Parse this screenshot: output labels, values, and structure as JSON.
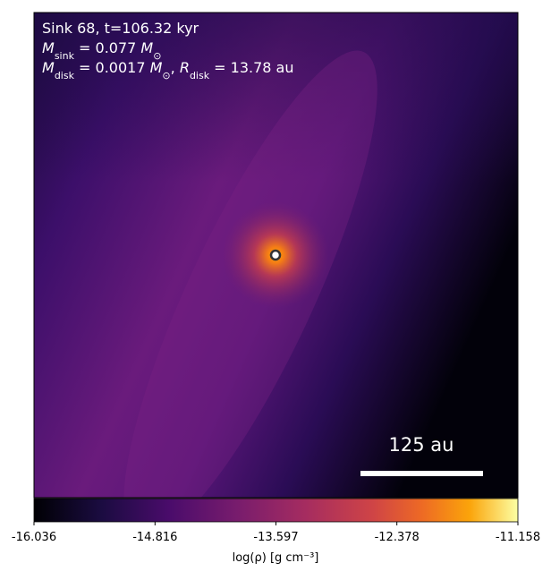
{
  "chart_data": {
    "type": "heatmap",
    "annotations": [
      [
        {
          "text": "Sink 68, t=106.32 kyr"
        }
      ],
      [
        {
          "text": "M",
          "italic": true
        },
        {
          "text": "sink",
          "sub": true
        },
        {
          "text": " = 0.077 "
        },
        {
          "text": "M",
          "italic": true
        },
        {
          "text": "⊙",
          "sub": true
        }
      ],
      [
        {
          "text": "M",
          "italic": true
        },
        {
          "text": "disk",
          "sub": true
        },
        {
          "text": " = 0.0017 "
        },
        {
          "text": "M",
          "italic": true
        },
        {
          "text": "⊙",
          "sub": true
        },
        {
          "text": ", "
        },
        {
          "text": "R",
          "italic": true
        },
        {
          "text": "disk",
          "sub": true
        },
        {
          "text": " = 13.78 au"
        }
      ]
    ],
    "scale_bar_label": "125 au",
    "colorbar": {
      "label": "log(ρ) [g cm⁻³]",
      "clim": [
        -16.036,
        -11.158
      ],
      "ticks": [
        -16.036,
        -14.816,
        -13.597,
        -12.378,
        -11.158
      ],
      "colormap": "inferno"
    }
  }
}
